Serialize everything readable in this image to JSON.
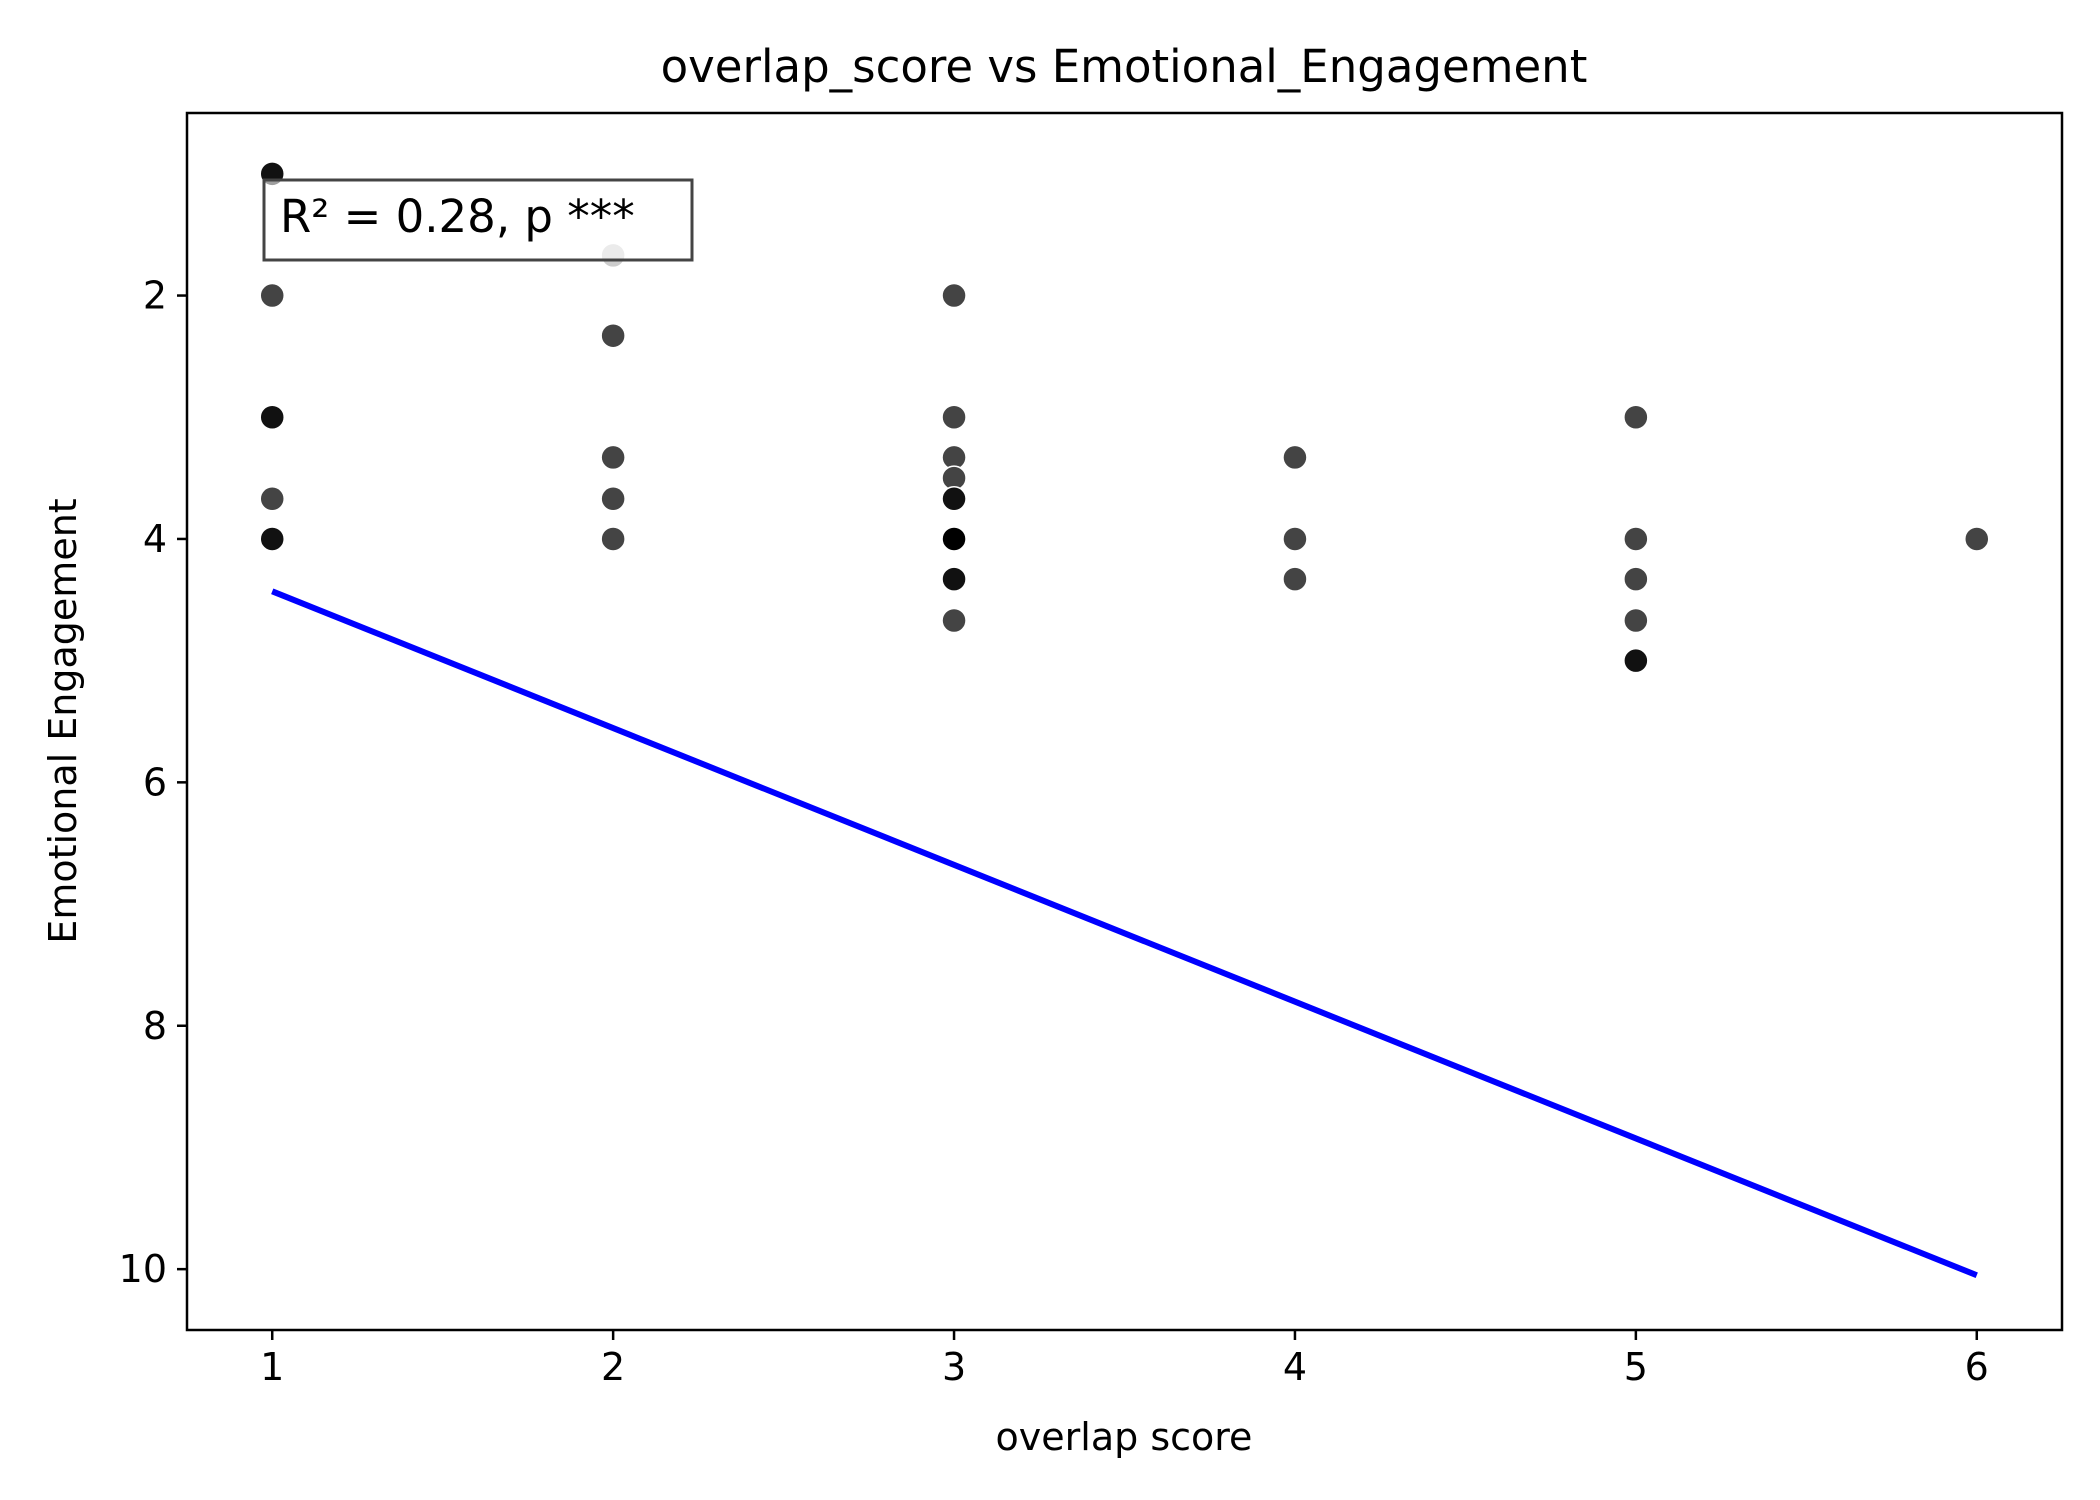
{
  "chart_data": {
    "type": "scatter",
    "title": "overlap_score vs Emotional_Engagement",
    "xlabel": "overlap score",
    "ylabel": "Emotional Engagement",
    "xlim": [
      0.75,
      6.25
    ],
    "ylim": [
      10.5,
      0.5
    ],
    "y_inverted": true,
    "xticks": [
      1,
      2,
      3,
      4,
      5,
      6
    ],
    "yticks": [
      2,
      4,
      6,
      8,
      10
    ],
    "grid": false,
    "annotation": "R² = 0.28, p ***",
    "point_colors": [
      "#111111",
      "#444444",
      "#cccccc",
      "#000000"
    ],
    "points": [
      {
        "x": 1,
        "y": 1.0,
        "c": 0
      },
      {
        "x": 1,
        "y": 2.0,
        "c": 1
      },
      {
        "x": 1,
        "y": 3.0,
        "c": 0
      },
      {
        "x": 1,
        "y": 3.67,
        "c": 1
      },
      {
        "x": 1,
        "y": 4.0,
        "c": 0
      },
      {
        "x": 2,
        "y": 1.67,
        "c": 2
      },
      {
        "x": 2,
        "y": 2.33,
        "c": 1
      },
      {
        "x": 2,
        "y": 3.33,
        "c": 1
      },
      {
        "x": 2,
        "y": 3.67,
        "c": 1
      },
      {
        "x": 2,
        "y": 4.0,
        "c": 1
      },
      {
        "x": 3,
        "y": 2.0,
        "c": 1
      },
      {
        "x": 3,
        "y": 3.0,
        "c": 1
      },
      {
        "x": 3,
        "y": 3.33,
        "c": 1
      },
      {
        "x": 3,
        "y": 3.5,
        "c": 1
      },
      {
        "x": 3,
        "y": 3.67,
        "c": 0
      },
      {
        "x": 3,
        "y": 4.0,
        "c": 3
      },
      {
        "x": 3,
        "y": 4.33,
        "c": 0
      },
      {
        "x": 3,
        "y": 4.67,
        "c": 1
      },
      {
        "x": 4,
        "y": 3.33,
        "c": 1
      },
      {
        "x": 4,
        "y": 4.0,
        "c": 1
      },
      {
        "x": 4,
        "y": 4.33,
        "c": 1
      },
      {
        "x": 5,
        "y": 3.0,
        "c": 1
      },
      {
        "x": 5,
        "y": 4.0,
        "c": 1
      },
      {
        "x": 5,
        "y": 4.33,
        "c": 1
      },
      {
        "x": 5,
        "y": 4.67,
        "c": 1
      },
      {
        "x": 5,
        "y": 5.0,
        "c": 0
      },
      {
        "x": 6,
        "y": 4.0,
        "c": 1
      }
    ],
    "trendline": {
      "x": [
        1,
        6
      ],
      "y": [
        4.43,
        10.05
      ],
      "color": "#0000ff"
    }
  }
}
